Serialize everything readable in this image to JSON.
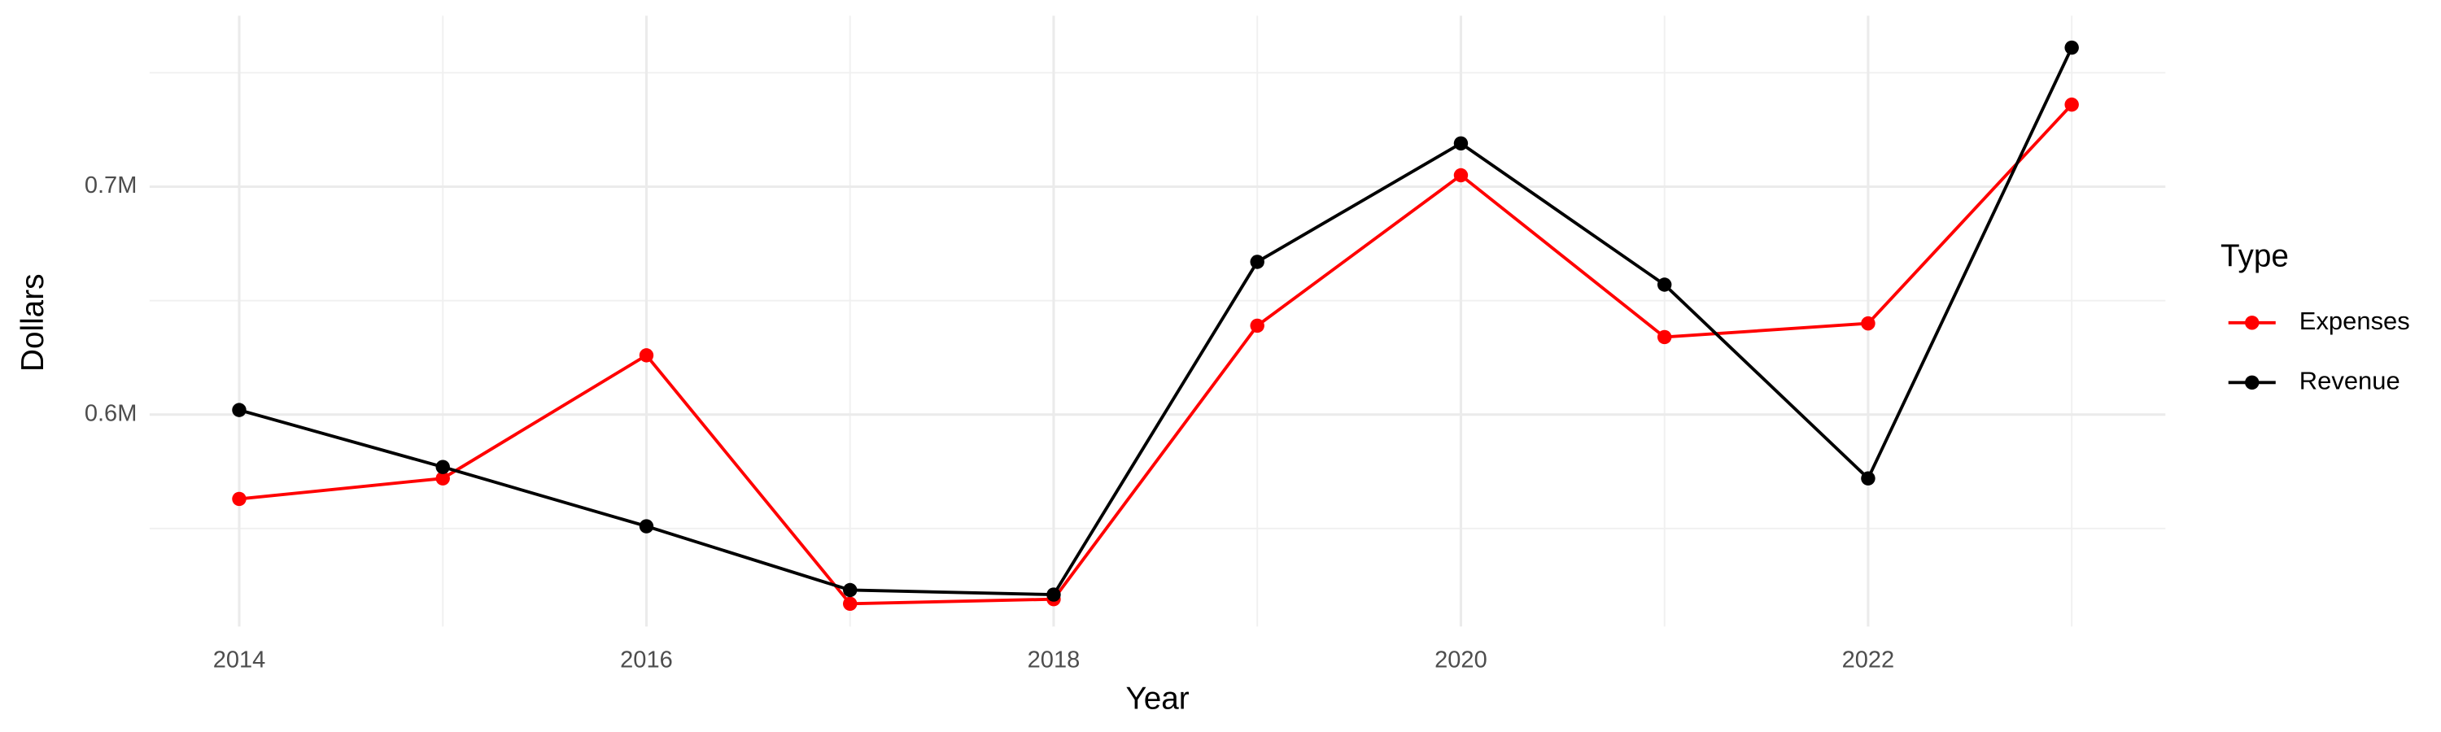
{
  "chart_data": {
    "type": "line",
    "x_label": "Year",
    "y_label": "Dollars",
    "legend_title": "Type",
    "legend_position": "right",
    "grid": true,
    "x": [
      2014,
      2015,
      2016,
      2017,
      2018,
      2019,
      2020,
      2021,
      2022,
      2023
    ],
    "series": [
      {
        "name": "Expenses",
        "color": "#ff0000",
        "values": [
          563000,
          572000,
          626000,
          517000,
          519000,
          639000,
          705000,
          634000,
          640000,
          736000
        ]
      },
      {
        "name": "Revenue",
        "color": "#000000",
        "values": [
          602000,
          577000,
          551000,
          523000,
          521000,
          667000,
          719000,
          657000,
          572000,
          761000
        ]
      }
    ],
    "xlim": [
      2013.56,
      2023.46
    ],
    "xticks": [
      2014,
      2016,
      2018,
      2020,
      2022
    ],
    "ylim": [
      507000,
      775000
    ],
    "yticks": [
      {
        "value": 600000,
        "label": "0.6M"
      },
      {
        "value": 700000,
        "label": "0.7M"
      }
    ]
  }
}
